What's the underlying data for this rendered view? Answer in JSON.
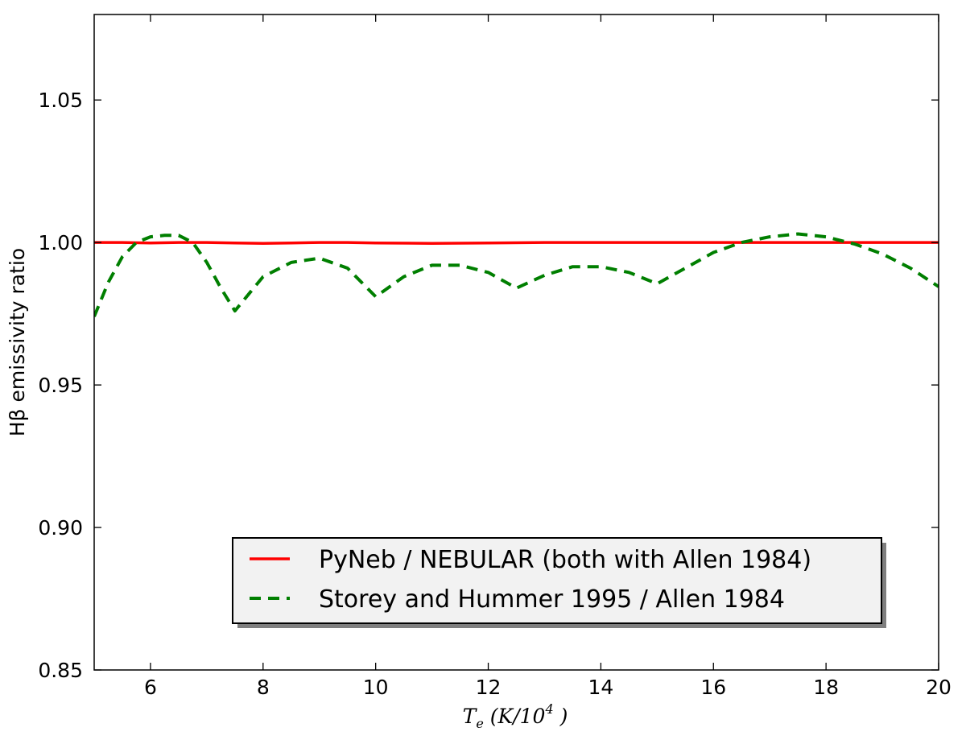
{
  "chart_data": {
    "type": "line",
    "title": "",
    "xlabel": "T_e (K/10^4 )",
    "xlabel_parts": {
      "base": "T",
      "sub": "e",
      "open": " (K/10",
      "sup": "4",
      "close": " )"
    },
    "ylabel": "Hβ emissivity ratio",
    "xlim": [
      5,
      20
    ],
    "ylim": [
      0.85,
      1.08
    ],
    "xticks": [
      6,
      8,
      10,
      12,
      14,
      16,
      18,
      20
    ],
    "yticks": [
      0.85,
      0.9,
      0.95,
      1.0,
      1.05
    ],
    "ytick_labels": [
      "0.85",
      "0.90",
      "0.95",
      "1.00",
      "1.05"
    ],
    "grid": false,
    "legend_position": "lower-right",
    "series": [
      {
        "name": "PyNeb / NEBULAR (both with Allen 1984)",
        "color": "#ff0000",
        "style": "solid",
        "x": [
          5,
          5.5,
          6,
          6.5,
          7,
          7.5,
          8,
          8.5,
          9,
          9.5,
          10,
          11,
          12,
          13,
          14,
          15,
          16,
          17,
          18,
          19,
          20
        ],
        "y": [
          1.0,
          1.0,
          0.9998,
          1.0,
          1.0,
          0.9998,
          0.9997,
          0.9998,
          1.0,
          1.0,
          0.9998,
          0.9997,
          0.9998,
          1.0,
          1.0,
          1.0,
          1.0,
          1.0,
          1.0,
          1.0,
          1.0
        ]
      },
      {
        "name": "Storey and Hummer 1995 / Allen 1984",
        "color": "#007f00",
        "style": "dashed",
        "x": [
          5,
          5.25,
          5.5,
          5.75,
          6,
          6.25,
          6.5,
          6.75,
          7,
          7.25,
          7.5,
          7.75,
          8,
          8.5,
          9,
          9.5,
          10,
          10.5,
          11,
          11.5,
          12,
          12.5,
          13,
          13.5,
          14,
          14.5,
          15,
          15.5,
          16,
          16.5,
          17,
          17.5,
          18,
          18.5,
          19,
          19.5,
          20
        ],
        "y": [
          0.974,
          0.986,
          0.995,
          1.0,
          1.002,
          1.0025,
          1.0025,
          1.0,
          0.993,
          0.984,
          0.976,
          0.982,
          0.988,
          0.993,
          0.9945,
          0.991,
          0.981,
          0.988,
          0.992,
          0.992,
          0.9895,
          0.984,
          0.9885,
          0.9915,
          0.9915,
          0.9895,
          0.9855,
          0.991,
          0.9965,
          1.0,
          1.002,
          1.003,
          1.002,
          0.9995,
          0.996,
          0.991,
          0.9845
        ]
      }
    ]
  }
}
